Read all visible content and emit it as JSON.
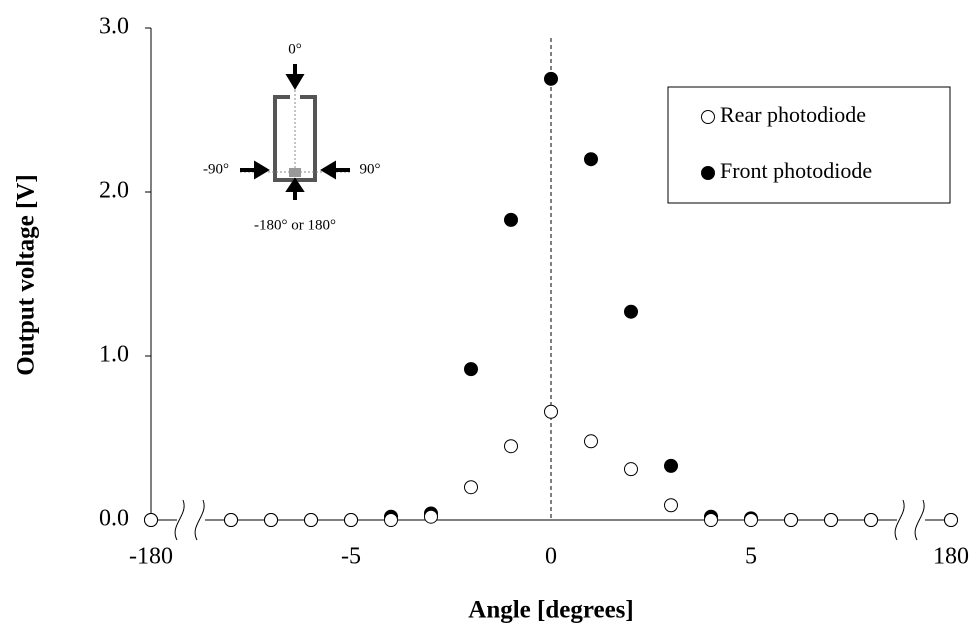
{
  "chart_data": {
    "type": "scatter",
    "y_label": "Output voltage [V]",
    "x_label": "Angle [degrees]",
    "categories": [
      "-180",
      null,
      null,
      null,
      null,
      "-5",
      null,
      null,
      null,
      null,
      "0",
      null,
      null,
      null,
      null,
      "5",
      null,
      null,
      null,
      null,
      "180"
    ],
    "series": [
      {
        "name": "Rear photodiode",
        "color": "#000000",
        "marker": "open",
        "values": [
          0,
          null,
          0,
          0,
          0,
          0,
          0,
          0.02,
          0.2,
          0.45,
          0.66,
          0.48,
          0.31,
          0.09,
          0,
          0,
          0,
          0,
          0,
          null,
          0
        ]
      },
      {
        "name": "Front photodiode",
        "color": "#000000",
        "marker": "filled",
        "values": [
          0,
          null,
          0,
          0,
          0,
          0,
          0.02,
          0.04,
          0.92,
          1.83,
          2.69,
          2.2,
          1.27,
          0.33,
          0.02,
          0.01,
          0,
          0,
          0,
          null,
          0
        ]
      }
    ],
    "ylim": [
      0,
      3
    ],
    "yticks": [
      {
        "value": 0,
        "label": "0.0"
      },
      {
        "value": 1,
        "label": "1.0"
      },
      {
        "value": 2,
        "label": "2.0"
      },
      {
        "value": 3,
        "label": "3.0"
      }
    ],
    "reference_category": 10,
    "axis_breaks": [
      1,
      19
    ],
    "legend": "upper right",
    "inset_labels": {
      "top": "0°",
      "left": "-90°",
      "right": "90°",
      "bottom": "-180° or 180°"
    }
  }
}
